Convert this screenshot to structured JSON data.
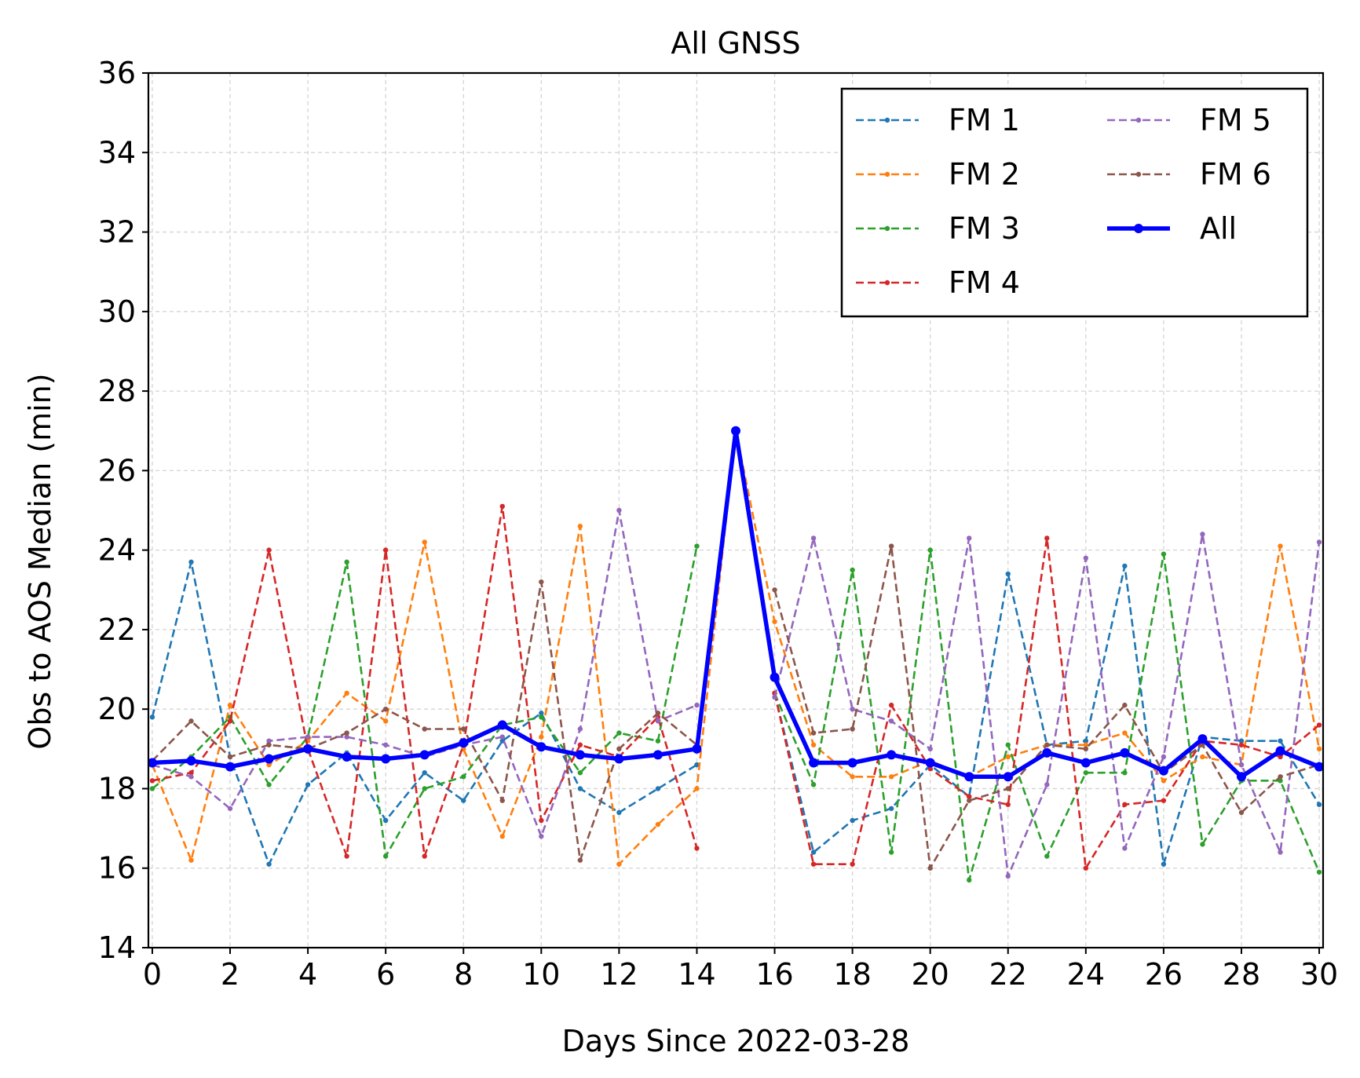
{
  "chart_data": {
    "type": "line",
    "title": "All GNSS",
    "xlabel": "Days Since 2022-03-28",
    "ylabel": "Obs to AOS Median (min)",
    "xlim": [
      -0.1,
      30.1
    ],
    "ylim": [
      14,
      36
    ],
    "x_ticks": [
      0,
      2,
      4,
      6,
      8,
      10,
      12,
      14,
      16,
      18,
      20,
      22,
      24,
      26,
      28,
      30
    ],
    "y_ticks": [
      14,
      16,
      18,
      20,
      22,
      24,
      26,
      28,
      30,
      32,
      34,
      36
    ],
    "grid": true,
    "legend_position": "top-right",
    "legend_columns": 2,
    "x": [
      0,
      1,
      2,
      3,
      4,
      5,
      6,
      7,
      8,
      9,
      10,
      11,
      12,
      13,
      14,
      15,
      16,
      17,
      18,
      19,
      20,
      21,
      22,
      23,
      24,
      25,
      26,
      27,
      28,
      29,
      30
    ],
    "series": [
      {
        "name": "FM 1",
        "color": "#1f77b4",
        "style": "dashed",
        "values": [
          19.8,
          23.7,
          18.8,
          16.1,
          18.1,
          18.9,
          17.2,
          18.4,
          17.7,
          19.2,
          19.9,
          18.0,
          17.4,
          18.0,
          18.6,
          null,
          20.4,
          16.4,
          17.2,
          17.5,
          18.6,
          17.8,
          23.4,
          19.1,
          19.2,
          23.6,
          16.1,
          19.3,
          19.2,
          19.2,
          17.6
        ]
      },
      {
        "name": "FM 2",
        "color": "#ff7f0e",
        "style": "dashed",
        "values": [
          18.6,
          16.2,
          20.1,
          18.6,
          19.2,
          20.4,
          19.7,
          24.2,
          19.0,
          16.8,
          19.3,
          24.6,
          16.1,
          17.1,
          18.0,
          27.0,
          22.2,
          19.1,
          18.3,
          18.3,
          18.7,
          18.3,
          18.8,
          19.1,
          19.1,
          19.4,
          18.2,
          18.8,
          18.6,
          24.1,
          19.0
        ]
      },
      {
        "name": "FM 3",
        "color": "#2ca02c",
        "style": "dashed",
        "values": [
          18.0,
          18.8,
          19.8,
          18.1,
          19.3,
          23.7,
          16.3,
          18.0,
          18.3,
          19.6,
          19.8,
          18.4,
          19.4,
          19.2,
          24.1,
          null,
          20.4,
          18.1,
          23.5,
          16.4,
          24.0,
          15.7,
          19.1,
          16.3,
          18.4,
          18.4,
          23.9,
          16.6,
          18.2,
          18.2,
          15.9
        ]
      },
      {
        "name": "FM 4",
        "color": "#d62728",
        "style": "dashed",
        "values": [
          18.2,
          18.4,
          19.7,
          24.0,
          19.0,
          16.3,
          24.0,
          16.3,
          19.1,
          25.1,
          17.2,
          19.1,
          18.8,
          19.8,
          16.5,
          null,
          20.4,
          16.1,
          16.1,
          20.1,
          18.5,
          17.8,
          17.6,
          24.3,
          16.0,
          17.6,
          17.7,
          19.2,
          19.1,
          18.8,
          19.6
        ]
      },
      {
        "name": "FM 5",
        "color": "#9467bd",
        "style": "dashed",
        "values": [
          18.6,
          18.3,
          17.5,
          19.2,
          19.3,
          19.3,
          19.1,
          18.8,
          19.1,
          19.3,
          16.8,
          19.5,
          25.0,
          19.7,
          20.1,
          null,
          20.3,
          24.3,
          20.0,
          19.7,
          19.0,
          24.3,
          15.8,
          18.1,
          23.8,
          16.5,
          18.8,
          24.4,
          18.6,
          16.4,
          24.2
        ]
      },
      {
        "name": "FM 6",
        "color": "#8c564b",
        "style": "dashed",
        "values": [
          18.7,
          19.7,
          18.8,
          19.1,
          19.0,
          19.4,
          20.0,
          19.5,
          19.5,
          17.7,
          23.2,
          16.2,
          19.0,
          19.9,
          19.1,
          null,
          23.0,
          19.4,
          19.5,
          24.1,
          16.0,
          17.7,
          18.0,
          19.1,
          19.0,
          20.1,
          18.4,
          19.1,
          17.4,
          18.3,
          18.6
        ]
      },
      {
        "name": "All",
        "color": "#0000ff",
        "style": "solid",
        "values": [
          18.65,
          18.7,
          18.55,
          18.75,
          19.0,
          18.8,
          18.75,
          18.85,
          19.15,
          19.6,
          19.05,
          18.85,
          18.75,
          18.85,
          19.0,
          27.0,
          20.8,
          18.65,
          18.65,
          18.85,
          18.65,
          18.3,
          18.3,
          18.9,
          18.65,
          18.9,
          18.45,
          19.25,
          18.3,
          18.95,
          18.55
        ]
      }
    ]
  }
}
